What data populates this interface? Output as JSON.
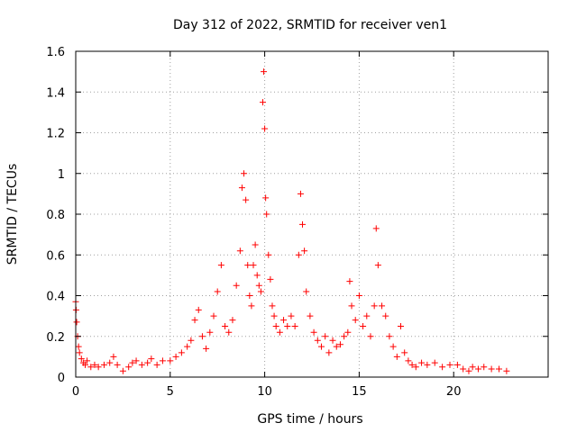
{
  "chart_data": {
    "type": "scatter",
    "title": "Day 312 of 2022, SRMTID for receiver ven1",
    "xlabel": "GPS time / hours",
    "ylabel": "SRMTID / TECUs",
    "xlim": [
      0,
      25
    ],
    "ylim": [
      0,
      1.6
    ],
    "x_ticks": [
      0,
      5,
      10,
      15,
      20
    ],
    "x_tick_labels": [
      "0",
      "5",
      "10",
      "15",
      "20"
    ],
    "y_ticks": [
      0,
      0.2,
      0.4,
      0.6,
      0.8,
      1.0,
      1.2,
      1.4,
      1.6
    ],
    "y_tick_labels": [
      "0",
      "0.2",
      "0.4",
      "0.6",
      "0.8",
      "1",
      "1.2",
      "1.4",
      "1.6"
    ],
    "grid": true,
    "marker": "plus",
    "color": "#ff0000",
    "series": [
      {
        "name": "SRMTID",
        "x": [
          0.0,
          0.02,
          0.05,
          0.1,
          0.15,
          0.2,
          0.3,
          0.4,
          0.5,
          0.6,
          0.8,
          1.0,
          1.2,
          1.5,
          1.8,
          2.0,
          2.2,
          2.5,
          2.8,
          3.0,
          3.2,
          3.5,
          3.8,
          4.0,
          4.3,
          4.6,
          5.0,
          5.3,
          5.6,
          5.9,
          6.1,
          6.3,
          6.5,
          6.7,
          6.9,
          7.1,
          7.3,
          7.5,
          7.7,
          7.9,
          8.1,
          8.3,
          8.5,
          8.7,
          8.8,
          8.9,
          9.0,
          9.1,
          9.2,
          9.3,
          9.4,
          9.5,
          9.6,
          9.7,
          9.8,
          9.9,
          9.95,
          10.0,
          10.05,
          10.1,
          10.2,
          10.3,
          10.4,
          10.5,
          10.6,
          10.8,
          11.0,
          11.2,
          11.4,
          11.6,
          11.8,
          11.9,
          12.0,
          12.1,
          12.2,
          12.4,
          12.6,
          12.8,
          13.0,
          13.2,
          13.4,
          13.6,
          13.8,
          14.0,
          14.2,
          14.4,
          14.5,
          14.6,
          14.8,
          15.0,
          15.2,
          15.4,
          15.6,
          15.8,
          15.9,
          16.0,
          16.2,
          16.4,
          16.6,
          16.8,
          17.0,
          17.2,
          17.4,
          17.6,
          17.8,
          18.0,
          18.3,
          18.6,
          19.0,
          19.4,
          19.8,
          20.2,
          20.5,
          20.8,
          21.0,
          21.3,
          21.6,
          22.0,
          22.4,
          22.8
        ],
        "y": [
          0.37,
          0.33,
          0.27,
          0.2,
          0.15,
          0.12,
          0.09,
          0.07,
          0.06,
          0.08,
          0.05,
          0.06,
          0.05,
          0.06,
          0.07,
          0.1,
          0.06,
          0.03,
          0.05,
          0.07,
          0.08,
          0.06,
          0.07,
          0.09,
          0.06,
          0.08,
          0.08,
          0.1,
          0.12,
          0.15,
          0.18,
          0.28,
          0.33,
          0.2,
          0.14,
          0.22,
          0.3,
          0.42,
          0.55,
          0.25,
          0.22,
          0.28,
          0.45,
          0.62,
          0.93,
          1.0,
          0.87,
          0.55,
          0.4,
          0.35,
          0.55,
          0.65,
          0.5,
          0.45,
          0.42,
          1.35,
          1.5,
          1.22,
          0.88,
          0.8,
          0.6,
          0.48,
          0.35,
          0.3,
          0.25,
          0.22,
          0.28,
          0.25,
          0.3,
          0.25,
          0.6,
          0.9,
          0.75,
          0.62,
          0.42,
          0.3,
          0.22,
          0.18,
          0.15,
          0.2,
          0.12,
          0.18,
          0.15,
          0.16,
          0.2,
          0.22,
          0.47,
          0.35,
          0.28,
          0.4,
          0.25,
          0.3,
          0.2,
          0.35,
          0.73,
          0.55,
          0.35,
          0.3,
          0.2,
          0.15,
          0.1,
          0.25,
          0.12,
          0.08,
          0.06,
          0.05,
          0.07,
          0.06,
          0.07,
          0.05,
          0.06,
          0.06,
          0.04,
          0.03,
          0.05,
          0.04,
          0.05,
          0.04,
          0.04,
          0.03
        ]
      }
    ]
  }
}
